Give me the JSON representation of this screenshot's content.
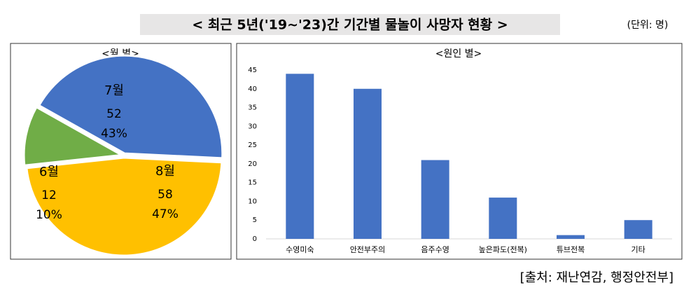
{
  "header": {
    "title": "< 최근 5년('19~'23)간 기간별 물놀이 사망자 현황 >",
    "unit": "(단위: 명)"
  },
  "chart_data": [
    {
      "type": "pie",
      "title": "<월 별>",
      "categories": [
        "7월",
        "8월",
        "6월"
      ],
      "values": [
        52,
        58,
        12
      ],
      "percent_labels": [
        "43%",
        "47%",
        "10%"
      ],
      "colors": [
        "#4472c4",
        "#ffc000",
        "#70ad47"
      ]
    },
    {
      "type": "bar",
      "title": "<원인 별>",
      "categories": [
        "수영미숙",
        "안전부주의",
        "음주수영",
        "높은파도(전복)",
        "튜브전복",
        "기타"
      ],
      "values": [
        44,
        40,
        21,
        11,
        1,
        5
      ],
      "color": "#4472c4",
      "ylim": [
        0,
        45
      ],
      "yticks": [
        0,
        5,
        10,
        15,
        20,
        25,
        30,
        35,
        40,
        45
      ],
      "grid": false
    }
  ],
  "footer": {
    "source": "[출처: 재난연감, 행정안전부]"
  }
}
